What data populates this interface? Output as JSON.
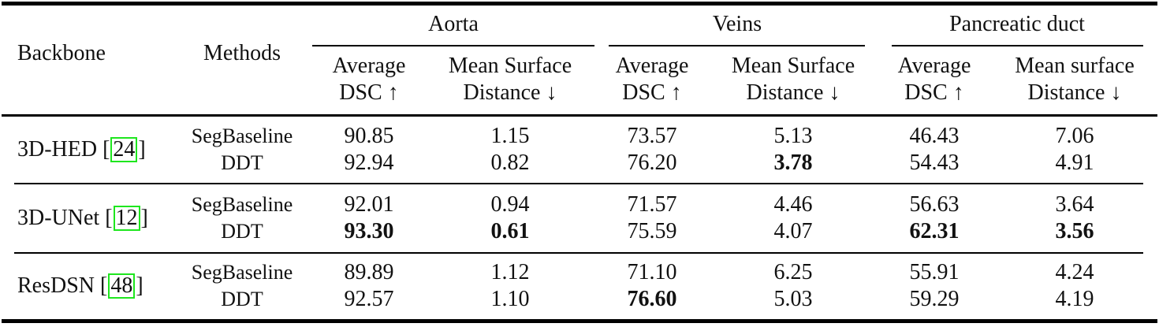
{
  "table": {
    "header": {
      "backbone": "Backbone",
      "methods": "Methods",
      "groups": [
        {
          "label": "Aorta",
          "metrics": [
            {
              "line1": "Average",
              "line2": "DSC ↑"
            },
            {
              "line1": "Mean Surface",
              "line2": "Distance ↓"
            }
          ]
        },
        {
          "label": "Veins",
          "metrics": [
            {
              "line1": "Average",
              "line2": "DSC ↑"
            },
            {
              "line1": "Mean Surface",
              "line2": "Distance ↓"
            }
          ]
        },
        {
          "label": "Pancreatic duct",
          "metrics": [
            {
              "line1": "Average",
              "line2": "DSC ↑"
            },
            {
              "line1": "Mean surface",
              "line2": "Distance ↓"
            }
          ]
        }
      ]
    },
    "rows": [
      {
        "backbone": "3D-HED",
        "cite": "24",
        "methods": [
          {
            "name": "SegBaseline",
            "values": [
              "90.85",
              "1.15",
              "73.57",
              "5.13",
              "46.43",
              "7.06"
            ],
            "bold": [
              false,
              false,
              false,
              false,
              false,
              false
            ]
          },
          {
            "name": "DDT",
            "values": [
              "92.94",
              "0.82",
              "76.20",
              "3.78",
              "54.43",
              "4.91"
            ],
            "bold": [
              false,
              false,
              false,
              true,
              false,
              false
            ]
          }
        ]
      },
      {
        "backbone": "3D-UNet",
        "cite": "12",
        "methods": [
          {
            "name": "SegBaseline",
            "values": [
              "92.01",
              "0.94",
              "71.57",
              "4.46",
              "56.63",
              "3.64"
            ],
            "bold": [
              false,
              false,
              false,
              false,
              false,
              false
            ]
          },
          {
            "name": "DDT",
            "values": [
              "93.30",
              "0.61",
              "75.59",
              "4.07",
              "62.31",
              "3.56"
            ],
            "bold": [
              true,
              true,
              false,
              false,
              true,
              true
            ]
          }
        ]
      },
      {
        "backbone": "ResDSN",
        "cite": "48",
        "methods": [
          {
            "name": "SegBaseline",
            "values": [
              "89.89",
              "1.12",
              "71.10",
              "6.25",
              "55.91",
              "4.24"
            ],
            "bold": [
              false,
              false,
              false,
              false,
              false,
              false
            ]
          },
          {
            "name": "DDT",
            "values": [
              "92.57",
              "1.10",
              "76.60",
              "5.03",
              "59.29",
              "4.19"
            ],
            "bold": [
              false,
              false,
              true,
              false,
              false,
              false
            ]
          }
        ]
      }
    ]
  },
  "colors": {
    "cite_box": "#1ee61e",
    "rule": "#000000"
  }
}
